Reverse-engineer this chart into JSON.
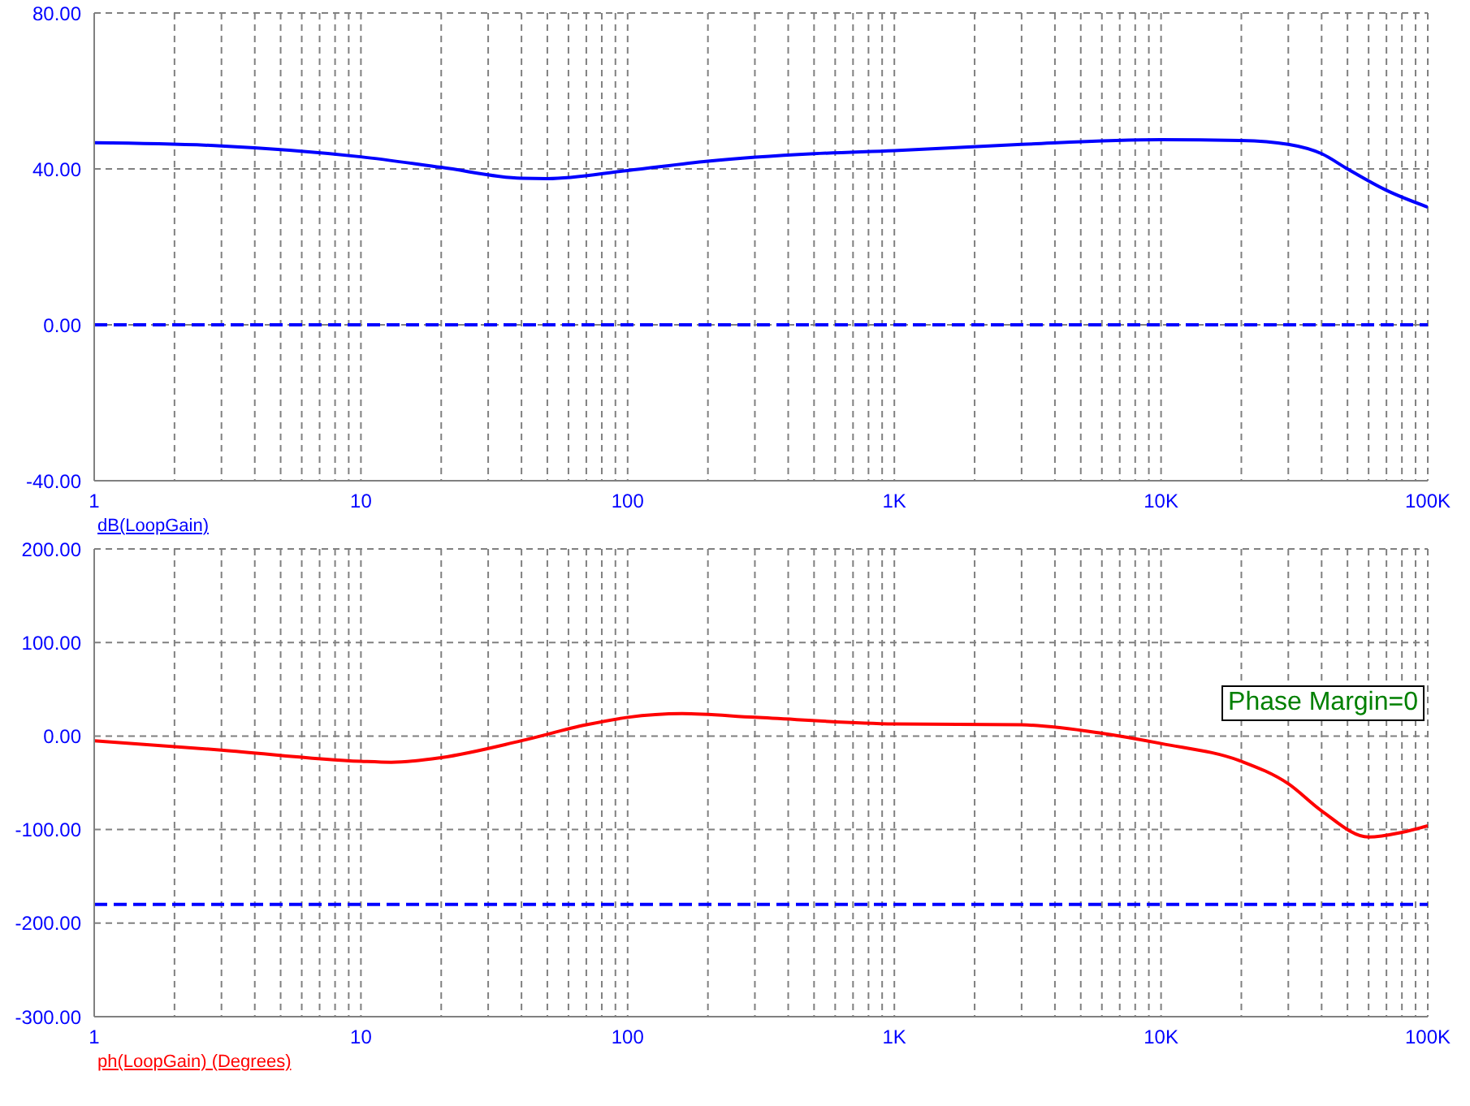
{
  "chart_data": [
    {
      "type": "line",
      "log": "x",
      "grid": true,
      "legend": "bottom left",
      "marker": "none",
      "line_style": "solid",
      "xlim": [
        1,
        100000
      ],
      "xticks": [
        1,
        {
          "value": 2,
          "label": null
        },
        {
          "value": 3,
          "label": null
        },
        {
          "value": 4,
          "label": null
        },
        {
          "value": 5,
          "label": null
        },
        {
          "value": 6,
          "label": null
        },
        {
          "value": 7,
          "label": null
        },
        {
          "value": 8,
          "label": null
        },
        {
          "value": 9,
          "label": null
        },
        10,
        {
          "value": 20,
          "label": null
        },
        {
          "value": 30,
          "label": null
        },
        {
          "value": 40,
          "label": null
        },
        {
          "value": 50,
          "label": null
        },
        {
          "value": 60,
          "label": null
        },
        {
          "value": 70,
          "label": null
        },
        {
          "value": 80,
          "label": null
        },
        {
          "value": 90,
          "label": null
        },
        100,
        {
          "value": 200,
          "label": null
        },
        {
          "value": 300,
          "label": null
        },
        {
          "value": 400,
          "label": null
        },
        {
          "value": 500,
          "label": null
        },
        {
          "value": 600,
          "label": null
        },
        {
          "value": 700,
          "label": null
        },
        {
          "value": 800,
          "label": null
        },
        {
          "value": 900,
          "label": null
        },
        {
          "value": 1000,
          "label": "1K"
        },
        {
          "value": 2000,
          "label": null
        },
        {
          "value": 3000,
          "label": null
        },
        {
          "value": 4000,
          "label": null
        },
        {
          "value": 5000,
          "label": null
        },
        {
          "value": 6000,
          "label": null
        },
        {
          "value": 7000,
          "label": null
        },
        {
          "value": 8000,
          "label": null
        },
        {
          "value": 9000,
          "label": null
        },
        {
          "value": 10000,
          "label": "10K"
        },
        {
          "value": 20000,
          "label": null
        },
        {
          "value": 30000,
          "label": null
        },
        {
          "value": 40000,
          "label": null
        },
        {
          "value": 50000,
          "label": null
        },
        {
          "value": 60000,
          "label": null
        },
        {
          "value": 70000,
          "label": null
        },
        {
          "value": 80000,
          "label": null
        },
        {
          "value": 90000,
          "label": null
        },
        {
          "value": 100000,
          "label": "100K"
        }
      ],
      "ylim": [
        -40,
        80
      ],
      "yticks": [
        {
          "value": -40,
          "label": "-40.00"
        },
        {
          "value": 0,
          "label": "0.00"
        },
        {
          "value": 40,
          "label": "40.00"
        },
        {
          "value": 80,
          "label": "80.00"
        }
      ],
      "x": [
        1,
        3,
        10,
        20,
        40,
        50,
        100,
        200,
        500,
        1000,
        3000,
        10000,
        20000,
        30000,
        40000,
        50000,
        70000,
        100000
      ],
      "series": [
        {
          "name": "dB(LoopGain)",
          "color": "#0000ff",
          "values": [
            46.7,
            45.9,
            43.1,
            40.4,
            37.6,
            37.5,
            39.6,
            42,
            43.9,
            44.7,
            46.3,
            47.5,
            47.3,
            46.3,
            43.9,
            40,
            34.5,
            30.2
          ]
        }
      ],
      "ref_lines": [
        {
          "axis": "y",
          "value": 0,
          "color": "#0000ff",
          "line_style": "dashed"
        }
      ]
    },
    {
      "type": "line",
      "log": "x",
      "grid": true,
      "legend": "bottom left",
      "marker": "none",
      "line_style": "solid",
      "xlim": [
        1,
        100000
      ],
      "xticks": [
        1,
        {
          "value": 2,
          "label": null
        },
        {
          "value": 3,
          "label": null
        },
        {
          "value": 4,
          "label": null
        },
        {
          "value": 5,
          "label": null
        },
        {
          "value": 6,
          "label": null
        },
        {
          "value": 7,
          "label": null
        },
        {
          "value": 8,
          "label": null
        },
        {
          "value": 9,
          "label": null
        },
        10,
        {
          "value": 20,
          "label": null
        },
        {
          "value": 30,
          "label": null
        },
        {
          "value": 40,
          "label": null
        },
        {
          "value": 50,
          "label": null
        },
        {
          "value": 60,
          "label": null
        },
        {
          "value": 70,
          "label": null
        },
        {
          "value": 80,
          "label": null
        },
        {
          "value": 90,
          "label": null
        },
        100,
        {
          "value": 200,
          "label": null
        },
        {
          "value": 300,
          "label": null
        },
        {
          "value": 400,
          "label": null
        },
        {
          "value": 500,
          "label": null
        },
        {
          "value": 600,
          "label": null
        },
        {
          "value": 700,
          "label": null
        },
        {
          "value": 800,
          "label": null
        },
        {
          "value": 900,
          "label": null
        },
        {
          "value": 1000,
          "label": "1K"
        },
        {
          "value": 2000,
          "label": null
        },
        {
          "value": 3000,
          "label": null
        },
        {
          "value": 4000,
          "label": null
        },
        {
          "value": 5000,
          "label": null
        },
        {
          "value": 6000,
          "label": null
        },
        {
          "value": 7000,
          "label": null
        },
        {
          "value": 8000,
          "label": null
        },
        {
          "value": 9000,
          "label": null
        },
        {
          "value": 10000,
          "label": "10K"
        },
        {
          "value": 20000,
          "label": null
        },
        {
          "value": 30000,
          "label": null
        },
        {
          "value": 40000,
          "label": null
        },
        {
          "value": 50000,
          "label": null
        },
        {
          "value": 60000,
          "label": null
        },
        {
          "value": 70000,
          "label": null
        },
        {
          "value": 80000,
          "label": null
        },
        {
          "value": 90000,
          "label": null
        },
        {
          "value": 100000,
          "label": "100K"
        }
      ],
      "ylim": [
        -300,
        200
      ],
      "yticks": [
        {
          "value": -300,
          "label": "-300.00"
        },
        {
          "value": -200,
          "label": "-200.00"
        },
        {
          "value": -100,
          "label": "-100.00"
        },
        {
          "value": 0,
          "label": "0.00"
        },
        {
          "value": 100,
          "label": "100.00"
        },
        {
          "value": 200,
          "label": "200.00"
        }
      ],
      "x": [
        1,
        3,
        10,
        13,
        20,
        40,
        70,
        100,
        160,
        300,
        1000,
        3000,
        6000,
        10000,
        20000,
        30000,
        40000,
        60000,
        80000,
        100000
      ],
      "series": [
        {
          "name": "ph(LoopGain) (Degrees)",
          "color": "#ff0000",
          "values": [
            -5,
            -15,
            -27,
            -28,
            -23,
            -5,
            12,
            20,
            24,
            20,
            13,
            12,
            3,
            -8,
            -27,
            -51,
            -80,
            -108,
            -103,
            -96
          ]
        }
      ],
      "ref_lines": [
        {
          "axis": "y",
          "value": -180,
          "color": "#0000ff",
          "line_style": "dashed"
        }
      ],
      "annotations": [
        "Phase Margin=0"
      ]
    }
  ]
}
